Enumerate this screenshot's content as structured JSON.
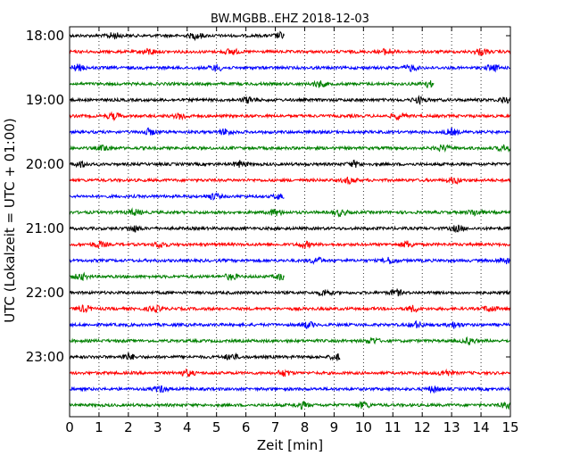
{
  "chart_data": {
    "type": "line",
    "title": "BW.MGBB..EHZ 2018-12-03",
    "xlabel": "Zeit  [min]",
    "ylabel": "UTC (Lokalzeit = UTC + 01:00)",
    "xlim": [
      0,
      15
    ],
    "x_ticks": [
      "0",
      "1",
      "2",
      "3",
      "4",
      "5",
      "6",
      "7",
      "8",
      "9",
      "10",
      "11",
      "12",
      "13",
      "14",
      "15"
    ],
    "y_ticks": [
      "18:00",
      "19:00",
      "20:00",
      "21:00",
      "22:00",
      "23:00"
    ],
    "rows_per_hour": 4,
    "minutes_per_row": 15,
    "trace_colors": [
      "#000000",
      "#ff0000",
      "#0000ff",
      "#008000"
    ],
    "grid": "vertical dotted",
    "last_row_end_min": 15,
    "rows": [
      {
        "time": "18:00",
        "end_min": 7.3,
        "bursts": [
          1.5,
          4.3,
          7.2
        ]
      },
      {
        "time": "18:15",
        "end_min": 15,
        "bursts": [
          2.7,
          5.5,
          10.8,
          14.0
        ]
      },
      {
        "time": "18:30",
        "end_min": 15,
        "bursts": [
          0.3,
          5.0,
          11.6,
          14.4
        ]
      },
      {
        "time": "18:45",
        "end_min": 12.4,
        "bursts": [
          8.5,
          12.2
        ]
      },
      {
        "time": "19:00",
        "end_min": 15,
        "bursts": [
          6.1,
          11.9,
          14.8
        ]
      },
      {
        "time": "19:15",
        "end_min": 15,
        "bursts": [
          1.5,
          3.8,
          11.2
        ]
      },
      {
        "time": "19:30",
        "end_min": 15,
        "bursts": [
          2.7,
          5.3,
          13.0
        ]
      },
      {
        "time": "19:45",
        "end_min": 15,
        "bursts": [
          1.2,
          12.7,
          14.8
        ]
      },
      {
        "time": "20:00",
        "end_min": 15,
        "bursts": [
          0.4,
          5.8,
          9.7
        ]
      },
      {
        "time": "20:15",
        "end_min": 15,
        "bursts": [
          9.5,
          13.1
        ]
      },
      {
        "time": "20:30",
        "end_min": 7.3,
        "bursts": [
          4.9,
          7.2
        ]
      },
      {
        "time": "20:45",
        "end_min": 15,
        "bursts": [
          2.2,
          7.0,
          9.2,
          13.8
        ]
      },
      {
        "time": "21:00",
        "end_min": 15,
        "bursts": [
          2.2,
          13.2
        ]
      },
      {
        "time": "21:15",
        "end_min": 15,
        "bursts": [
          1.0,
          3.1,
          8.0,
          11.5
        ]
      },
      {
        "time": "21:30",
        "end_min": 15,
        "bursts": [
          8.4,
          10.9,
          14.8
        ]
      },
      {
        "time": "21:45",
        "end_min": 7.3,
        "bursts": [
          0.4,
          5.5,
          7.2
        ]
      },
      {
        "time": "22:00",
        "end_min": 15,
        "bursts": [
          8.7,
          11.1
        ]
      },
      {
        "time": "22:15",
        "end_min": 15,
        "bursts": [
          0.5,
          2.9,
          11.7,
          14.3
        ]
      },
      {
        "time": "22:30",
        "end_min": 15,
        "bursts": [
          8.1,
          11.8,
          13.1
        ]
      },
      {
        "time": "22:45",
        "end_min": 15,
        "bursts": [
          10.3,
          13.6
        ]
      },
      {
        "time": "23:00",
        "end_min": 9.2,
        "bursts": [
          2.0,
          5.5,
          9.1
        ]
      },
      {
        "time": "23:15",
        "end_min": 15,
        "bursts": [
          4.0,
          7.3,
          12.8
        ]
      },
      {
        "time": "23:30",
        "end_min": 15,
        "bursts": [
          3.1,
          12.4
        ]
      },
      {
        "time": "23:45",
        "end_min": 15,
        "bursts": [
          7.9,
          10.0,
          14.9
        ]
      }
    ]
  }
}
